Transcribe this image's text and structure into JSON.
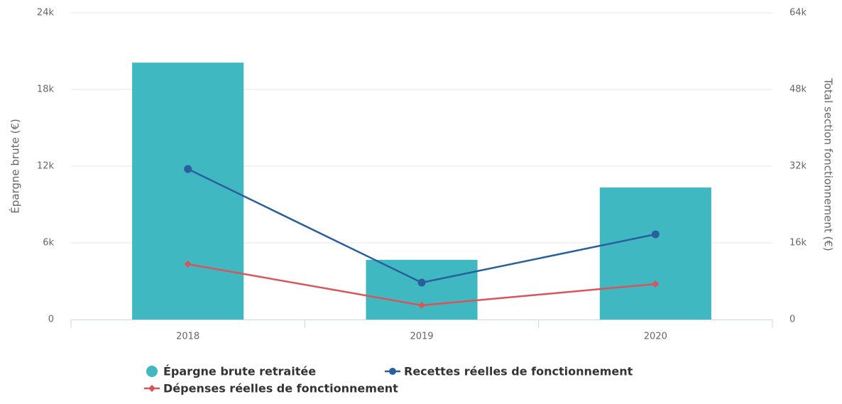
{
  "chart_data": {
    "type": "bar_line",
    "categories": [
      "2018",
      "2019",
      "2020"
    ],
    "ylabel": "Épargne brute (€)",
    "y2label": "Total section fonctionnement (€)",
    "ylim": [
      0,
      24000
    ],
    "yticks": [
      0,
      {
        "value": 6000,
        "label": "6k"
      },
      {
        "value": 12000,
        "label": "12k"
      },
      {
        "value": 18000,
        "label": "18k"
      },
      {
        "value": 24000,
        "label": "24k"
      }
    ],
    "y2lim": [
      0,
      64000
    ],
    "y2ticks": [
      0,
      {
        "value": 16000,
        "label": "16k"
      },
      {
        "value": 32000,
        "label": "32k"
      },
      {
        "value": 48000,
        "label": "48k"
      },
      {
        "value": 64000,
        "label": "64k"
      }
    ],
    "grid": true,
    "series": [
      {
        "name": "Épargne brute retraitée",
        "type": "bar",
        "color": "#40b8c1",
        "values": [
          20100,
          4670,
          10330
        ]
      },
      {
        "name": "Recettes réelles de fonctionnement",
        "type": "line",
        "marker": "circle",
        "axis": "y2",
        "color": "#2a5f9e",
        "values": [
          31400,
          7700,
          17780
        ]
      },
      {
        "name": "Dépenses réelles de fonctionnement",
        "type": "line",
        "marker": "diamond",
        "axis": "y2",
        "color": "#d9545b",
        "values": [
          11560,
          2960,
          7410
        ]
      }
    ]
  }
}
